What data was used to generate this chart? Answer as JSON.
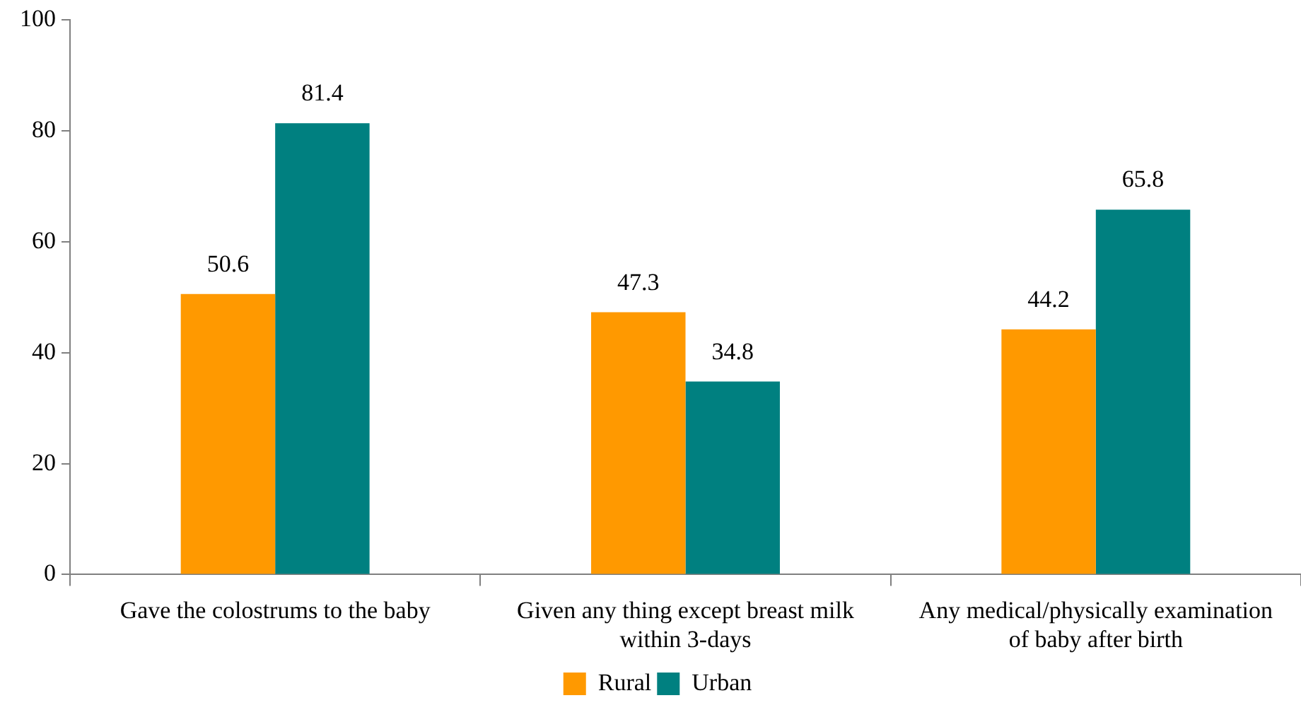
{
  "chart_data": {
    "type": "bar",
    "categories": [
      "Gave the colostrums to the baby",
      "Given any thing except breast milk within 3-days",
      "Any medical/physically examination of baby after birth"
    ],
    "series": [
      {
        "name": "Rural",
        "color": "#ff9900",
        "values": [
          50.6,
          47.3,
          44.2
        ]
      },
      {
        "name": "Urban",
        "color": "#008080",
        "values": [
          81.4,
          34.8,
          65.8
        ]
      }
    ],
    "ylim": [
      0,
      100
    ],
    "yticks": [
      0,
      20,
      40,
      60,
      80,
      100
    ],
    "grid": false,
    "legend": "bottom",
    "data_labels": true
  }
}
